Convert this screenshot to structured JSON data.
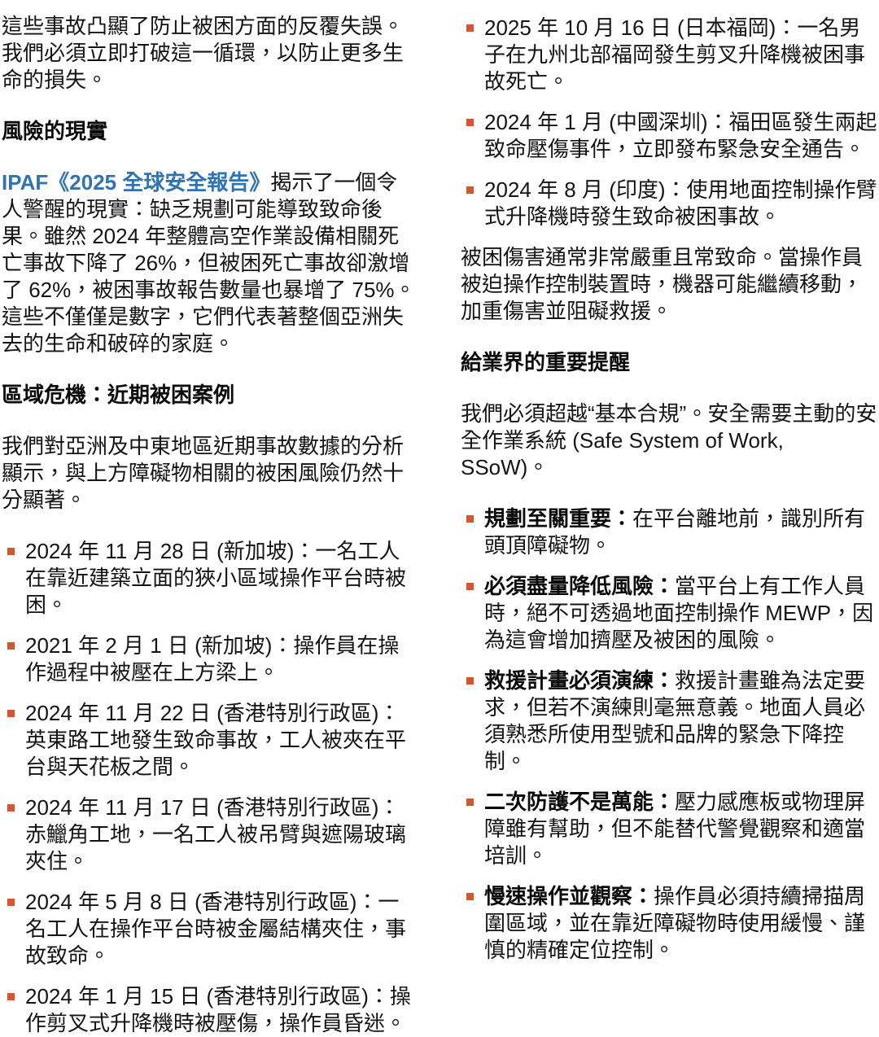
{
  "colors": {
    "bullet_orange": "#d9542b",
    "link_blue": "#2e74b5",
    "text": "#141414"
  },
  "left_column": {
    "intro": "這些事故凸顯了防止被困方面的反覆失誤。我們必須立即打破這一循環，以防止更多生命的損失。",
    "risk_section": {
      "heading": "風險的現實",
      "report_link": "IPAF《2025 全球安全報告》",
      "body_after_link": "揭示了一個令人警醒的現實：缺乏規劃可能導致致命後果。雖然 2024 年整體高空作業設備相關死亡事故下降了 26%，但被困死亡事故卻激增了 62%，被困事故報告數量也暴增了 75%。這些不僅僅是數字，它們代表著整個亞洲失去的生命和破碎的家庭。"
    },
    "regional_section": {
      "heading": "區域危機：近期被困案例",
      "intro": "我們對亞洲及中東地區近期事故數據的分析顯示，與上方障礙物相關的被困風險仍然十分顯著。",
      "cases": [
        "2024 年 11 月 28 日 (新加坡)：一名工人在靠近建築立面的狹小區域操作平台時被困。",
        "2021 年 2 月 1 日 (新加坡)：操作員在操作過程中被壓在上方梁上。",
        "2024 年 11 月 22 日 (香港特別行政區)：英東路工地發生致命事故，工人被夾在平台與天花板之間。",
        "2024 年 11 月 17 日 (香港特別行政區)：赤鱲角工地，一名工人被吊臂與遮陽玻璃夾住。",
        "2024 年 5 月 8 日 (香港特別行政區)：一名工人在操作平台時被金屬結構夾住，事故致命。",
        "2024 年 1 月 15 日 (香港特別行政區)：操作剪叉式升降機時被壓傷，操作員昏迷。"
      ]
    }
  },
  "right_column": {
    "cases": [
      "2025 年 10 月 16 日 (日本福岡)：一名男子在九州北部福岡發生剪叉升降機被困事故死亡。",
      "2024 年 1 月 (中國深圳)：福田區發生兩起致命壓傷事件，立即發布緊急安全通告。",
      "2024 年 8 月 (印度)：使用地面控制操作臂式升降機時發生致命被困事故。"
    ],
    "severity_note": "被困傷害通常非常嚴重且常致命。當操作員被迫操作控制裝置時，機器可能繼續移動，加重傷害並阻礙救援。",
    "reminder_section": {
      "heading": "給業界的重要提醒",
      "intro": "我們必須超越“基本合規”。安全需要主動的安全作業系統 (Safe System of Work, SSoW)。",
      "reminders": [
        {
          "lead": "規劃至關重要：",
          "text": "在平台離地前，識別所有頭頂障礙物。"
        },
        {
          "lead": "必須盡量降低風險：",
          "text": "當平台上有工作人員時，絕不可透過地面控制操作 MEWP，因為這會增加擠壓及被困的風險。"
        },
        {
          "lead": "救援計畫必須演練：",
          "text": "救援計畫雖為法定要求，但若不演練則毫無意義。地面人員必須熟悉所使用型號和品牌的緊急下降控制。"
        },
        {
          "lead": "二次防護不是萬能：",
          "text": "壓力感應板或物理屏障雖有幫助，但不能替代警覺觀察和適當培訓。"
        },
        {
          "lead": "慢速操作並觀察：",
          "text": "操作員必須持續掃描周圍區域，並在靠近障礙物時使用緩慢、謹慎的精確定位控制。"
        }
      ]
    }
  }
}
